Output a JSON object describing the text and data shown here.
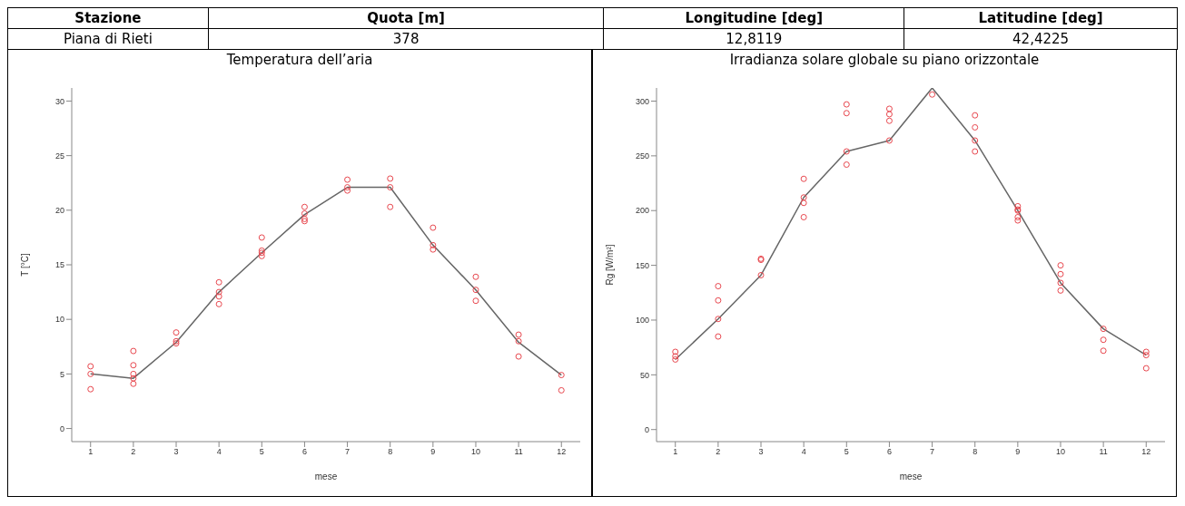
{
  "chart_data": [
    {
      "type": "other",
      "annotations": [
        "Stazione",
        "Quota [m]",
        "Longitudine [deg]",
        "Latitudine [deg]",
        "Piana di Rieti",
        "378",
        "12,8119",
        "42,4225"
      ]
    },
    {
      "type": "scatter",
      "title": "Temperatura dell’aria",
      "xlabel": "mese",
      "ylabel": "T [°C]",
      "xlim": [
        0.56,
        12.44
      ],
      "xticks": [
        1,
        2,
        3,
        4,
        5,
        6,
        7,
        8,
        9,
        10,
        11,
        12
      ],
      "ylim": [
        -1.2,
        31.2
      ],
      "yticks": [
        0,
        5,
        10,
        15,
        20,
        25,
        30
      ],
      "marker": "circle",
      "series": [
        {
          "type": "scatter",
          "color": "#e8484f",
          "x": [
            1,
            1,
            1,
            2,
            2,
            2,
            2,
            2,
            3,
            3,
            3,
            4,
            4,
            4,
            4,
            5,
            5,
            5,
            5,
            6,
            6,
            6,
            6,
            7,
            7,
            7,
            8,
            8,
            8,
            9,
            9,
            9,
            10,
            10,
            10,
            11,
            11,
            11,
            12,
            12
          ],
          "values": [
            5.7,
            5.0,
            3.6,
            7.1,
            5.8,
            5.0,
            4.6,
            4.1,
            8.8,
            8.0,
            7.8,
            13.4,
            12.5,
            12.1,
            11.4,
            17.5,
            16.3,
            16.1,
            15.8,
            20.3,
            19.7,
            19.2,
            19.0,
            22.8,
            22.1,
            21.8,
            22.9,
            22.1,
            20.3,
            18.4,
            16.8,
            16.4,
            13.9,
            12.7,
            11.7,
            8.6,
            8.0,
            6.6,
            4.9,
            3.5
          ]
        },
        {
          "type": "line",
          "color": "#666666",
          "marker": "none",
          "line_style": "solid",
          "x": [
            1,
            2,
            3,
            4,
            5,
            6,
            7,
            8,
            9,
            10,
            11,
            12
          ],
          "values": [
            5.0,
            4.6,
            7.9,
            12.5,
            16.1,
            19.6,
            22.1,
            22.1,
            16.8,
            12.7,
            7.9,
            4.9
          ]
        }
      ]
    },
    {
      "type": "scatter",
      "title": "Irradianza solare globale su piano orizzontale",
      "xlabel": "mese",
      "ylabel": "Rg [W/m²]",
      "xlim": [
        0.56,
        12.44
      ],
      "xticks": [
        1,
        2,
        3,
        4,
        5,
        6,
        7,
        8,
        9,
        10,
        11,
        12
      ],
      "ylim": [
        -11,
        312
      ],
      "yticks": [
        0,
        50,
        100,
        150,
        200,
        250,
        300
      ],
      "marker": "circle",
      "series": [
        {
          "type": "scatter",
          "color": "#e8484f",
          "x": [
            1,
            1,
            1,
            2,
            2,
            2,
            2,
            3,
            3,
            3,
            4,
            4,
            4,
            4,
            5,
            5,
            5,
            5,
            6,
            6,
            6,
            6,
            7,
            8,
            8,
            8,
            8,
            9,
            9,
            9,
            9,
            9,
            10,
            10,
            10,
            10,
            11,
            11,
            11,
            12,
            12,
            12
          ],
          "values": [
            71,
            67,
            64,
            131,
            118,
            101,
            85,
            156,
            155,
            141,
            229,
            212,
            207,
            194,
            297,
            289,
            254,
            242,
            293,
            288,
            282,
            264,
            306,
            287,
            276,
            264,
            254,
            204,
            201,
            200,
            194,
            191,
            150,
            142,
            134,
            127,
            92,
            82,
            72,
            71,
            68,
            56
          ]
        },
        {
          "type": "line",
          "color": "#666666",
          "marker": "none",
          "line_style": "solid",
          "x": [
            1,
            2,
            3,
            4,
            5,
            6,
            7,
            8,
            9,
            10,
            11,
            12
          ],
          "values": [
            64,
            101,
            141,
            212,
            254,
            264,
            312,
            264,
            200,
            134,
            92,
            68
          ]
        }
      ]
    }
  ]
}
